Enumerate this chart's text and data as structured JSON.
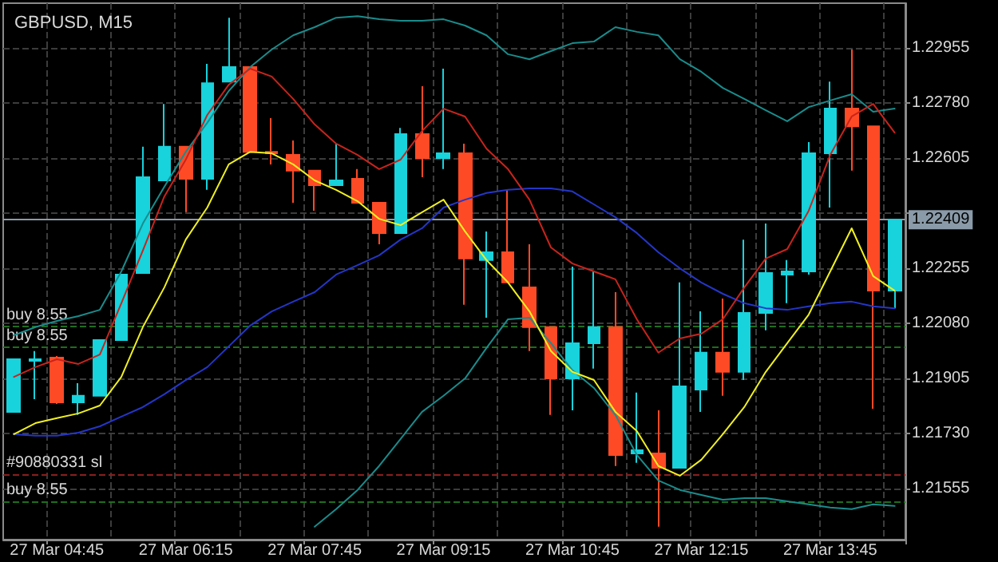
{
  "chart_data": {
    "type": "candlestick",
    "title": "GBPUSD, M15",
    "categories": [
      null,
      null,
      "27 Mar 04:45",
      null,
      null,
      null,
      null,
      null,
      "27 Mar 06:15",
      null,
      null,
      null,
      null,
      null,
      "27 Mar 07:45",
      null,
      null,
      null,
      null,
      null,
      "27 Mar 09:15",
      null,
      null,
      null,
      null,
      null,
      "27 Mar 10:45",
      null,
      null,
      null,
      null,
      null,
      "27 Mar 12:15",
      null,
      null,
      null,
      null,
      null,
      "27 Mar 13:45",
      null,
      null,
      null
    ],
    "ohlc": [
      [
        1.21799,
        1.21966,
        1.21799,
        1.21966
      ],
      [
        1.21961,
        1.21992,
        1.21839,
        1.21966
      ],
      [
        1.21971,
        1.21976,
        1.21824,
        1.21829
      ],
      [
        1.21829,
        1.2189,
        1.21789,
        1.2185
      ],
      [
        1.2185,
        1.22027,
        1.2185,
        1.22027
      ],
      [
        1.22027,
        1.22235,
        1.22027,
        1.22235
      ],
      [
        1.2224,
        1.22641,
        1.2224,
        1.22544
      ],
      [
        1.22534,
        1.22777,
        1.22534,
        1.22641
      ],
      [
        1.22641,
        1.22641,
        1.22433,
        1.22539
      ],
      [
        1.22539,
        1.22904,
        1.22504,
        1.22843
      ],
      [
        1.22848,
        1.23051,
        1.22848,
        1.22894
      ],
      [
        1.22894,
        1.22894,
        1.22625,
        1.22625
      ],
      [
        1.22625,
        1.22732,
        1.22585,
        1.2262
      ],
      [
        1.22615,
        1.22661,
        1.22463,
        1.22565
      ],
      [
        1.22565,
        1.22565,
        1.22438,
        1.22519
      ],
      [
        1.22519,
        1.22651,
        1.22519,
        1.22534
      ],
      [
        1.22539,
        1.2257,
        1.22463,
        1.22463
      ],
      [
        1.22463,
        1.22463,
        1.22331,
        1.22367
      ],
      [
        1.22367,
        1.22701,
        1.22367,
        1.22681
      ],
      [
        1.22681,
        1.22833,
        1.22544,
        1.22605
      ],
      [
        1.22605,
        1.22889,
        1.2257,
        1.2262
      ],
      [
        1.2262,
        1.22651,
        1.22139,
        1.22286
      ],
      [
        1.22281,
        1.22372,
        1.22098,
        1.22306
      ],
      [
        1.22306,
        1.22504,
        1.2221,
        1.2221
      ],
      [
        1.22194,
        1.22331,
        1.21992,
        1.22068
      ],
      [
        1.22068,
        1.22068,
        1.21789,
        1.21905
      ],
      [
        1.21905,
        1.2226,
        1.21804,
        1.22017
      ],
      [
        1.22017,
        1.22245,
        1.21936,
        1.22068
      ],
      [
        1.22068,
        1.22179,
        1.21627,
        1.21662
      ],
      [
        1.21667,
        1.2186,
        1.21637,
        1.21677
      ],
      [
        1.21667,
        1.21804,
        1.21434,
        1.21621
      ],
      [
        1.21621,
        1.2221,
        1.21621,
        1.2188
      ],
      [
        1.2187,
        1.22118,
        1.21799,
        1.21987
      ],
      [
        1.21987,
        1.22159,
        1.2185,
        1.21926
      ],
      [
        1.21926,
        1.22346,
        1.219,
        1.22113
      ],
      [
        1.22113,
        1.22397,
        1.22058,
        1.2224
      ],
      [
        1.22235,
        1.22281,
        1.22144,
        1.22245
      ],
      [
        1.22245,
        1.22656,
        1.22235,
        1.2262
      ],
      [
        1.2262,
        1.22848,
        1.22448,
        1.22762
      ],
      [
        1.22762,
        1.2295,
        1.22565,
        1.22706
      ],
      [
        1.22706,
        1.22706,
        1.21809,
        1.22184
      ],
      [
        1.22184,
        1.22409,
        1.22128,
        1.22409
      ]
    ],
    "colors": [
      "#18d2dc",
      "#18d2dc",
      "#ff4a26",
      "#18d2dc",
      "#18d2dc",
      "#18d2dc",
      "#18d2dc",
      "#18d2dc",
      "#ff4a26",
      "#18d2dc",
      "#18d2dc",
      "#ff4a26",
      "#ff4a26",
      "#ff4a26",
      "#ff4a26",
      "#18d2dc",
      "#ff4a26",
      "#ff4a26",
      "#18d2dc",
      "#ff4a26",
      "#18d2dc",
      "#ff4a26",
      "#18d2dc",
      "#ff4a26",
      "#ff4a26",
      "#ff4a26",
      "#18d2dc",
      "#18d2dc",
      "#ff4a26",
      "#18d2dc",
      "#ff4a26",
      "#18d2dc",
      "#18d2dc",
      "#ff4a26",
      "#18d2dc",
      "#18d2dc",
      "#18d2dc",
      "#18d2dc",
      "#18d2dc",
      "#ff4a26",
      "#ff4a26",
      "#18d2dc"
    ],
    "series": [
      {
        "type": "line",
        "color": "#1a8c8c",
        "values": [
          1.22042,
          1.22068,
          1.22088,
          1.22103,
          1.22123,
          1.22245,
          1.22397,
          1.22514,
          1.22625,
          1.22717,
          1.22818,
          1.22894,
          1.2295,
          1.22995,
          1.23021,
          1.23051,
          1.23056,
          1.23046,
          1.23041,
          1.23041,
          1.23046,
          1.23026,
          1.22995,
          1.22935,
          1.22919,
          1.22945,
          1.2297,
          1.22975,
          1.23021,
          1.23006,
          1.22995,
          1.22919,
          1.22879,
          1.22828,
          1.22793,
          1.22757,
          1.22722,
          1.22767,
          1.22788,
          1.22808,
          1.22752,
          1.22762
        ]
      },
      {
        "type": "line",
        "color": "#1a8c8c",
        "values": [
          null,
          null,
          null,
          null,
          null,
          null,
          null,
          null,
          null,
          null,
          null,
          null,
          null,
          null,
          1.21434,
          1.2149,
          1.21551,
          1.21627,
          1.21713,
          1.21799,
          1.2185,
          1.21905,
          1.22002,
          1.22093,
          1.22098,
          1.22017,
          1.21931,
          1.21875,
          1.21789,
          1.21662,
          1.21581,
          1.21551,
          1.21535,
          1.2152,
          1.21525,
          1.21525,
          1.21515,
          1.21505,
          1.21495,
          1.2149,
          1.21505,
          1.215
        ]
      },
      {
        "type": "line",
        "color": "#2436c8",
        "values": [
          1.21728,
          1.21723,
          1.21723,
          1.21733,
          1.21753,
          1.21784,
          1.21814,
          1.21855,
          1.219,
          1.21941,
          1.22007,
          1.22073,
          1.22118,
          1.22149,
          1.22179,
          1.22235,
          1.22265,
          1.22296,
          1.22346,
          1.22382,
          1.22448,
          1.22473,
          1.22494,
          1.22504,
          1.22509,
          1.22509,
          1.22499,
          1.22458,
          1.22417,
          1.22367,
          1.22306,
          1.22255,
          1.2221,
          1.22174,
          1.22144,
          1.22128,
          1.22123,
          1.22134,
          1.22144,
          1.22149,
          1.22134,
          1.22128
        ]
      },
      {
        "type": "line",
        "color": "#c8241c",
        "values": [
          1.2191,
          1.21941,
          1.21966,
          1.21951,
          1.21981,
          1.22144,
          1.22311,
          1.22483,
          1.226,
          1.22742,
          1.22838,
          1.22889,
          1.22864,
          1.22793,
          1.22712,
          1.22651,
          1.22615,
          1.2257,
          1.226,
          1.22691,
          1.22762,
          1.22737,
          1.22635,
          1.2257,
          1.22473,
          1.22321,
          1.2227,
          1.22245,
          1.2222,
          1.22093,
          1.21987,
          1.22032,
          1.22047,
          1.22093,
          1.22194,
          1.22286,
          1.22316,
          1.22438,
          1.22615,
          1.22737,
          1.22777,
          1.22686
        ]
      },
      {
        "type": "line",
        "color": "#f0f020",
        "values": [
          1.21728,
          1.21763,
          1.21779,
          1.21794,
          1.21819,
          1.2191,
          1.22068,
          1.22194,
          1.22346,
          1.22448,
          1.22585,
          1.22625,
          1.2262,
          1.22585,
          1.22534,
          1.22504,
          1.22468,
          1.22412,
          1.22392,
          1.22433,
          1.22473,
          1.22372,
          1.22281,
          1.2221,
          1.22118,
          1.21992,
          1.21926,
          1.219,
          1.21799,
          1.21738,
          1.21627,
          1.21596,
          1.21647,
          1.21728,
          1.21814,
          1.21926,
          1.22017,
          1.22108,
          1.22245,
          1.22382,
          1.2223,
          1.22184
        ]
      }
    ],
    "ylim": [
      1.21393,
      1.23097
    ],
    "yticks": [
      1.21555,
      {
        "value": 1.2173,
        "label": "1.21730"
      },
      1.21905,
      {
        "value": 1.2208,
        "label": "1.22080"
      },
      1.22255,
      {
        "value": 1.2243,
        "label": null
      },
      1.22605,
      {
        "value": 1.2278,
        "label": "1.22780"
      },
      1.22955
    ],
    "ref_lines": [
      {
        "axis": "y",
        "value": 1.2207,
        "label": "buy 8.55",
        "color": "#1e6e1e",
        "line_style": "dashed"
      },
      {
        "axis": "y",
        "value": 1.22004,
        "label": "buy 8.55",
        "color": "#1e6e1e",
        "line_style": "dashed"
      },
      {
        "axis": "y",
        "value": 1.21601,
        "label": "#90880331 sl",
        "color": "#8a1e1e",
        "line_style": "dashed"
      },
      {
        "axis": "y",
        "value": 1.21514,
        "label": "buy 8.55",
        "color": "#1e6e1e",
        "line_style": "dashed"
      },
      {
        "axis": "y",
        "value": 1.22409,
        "label": "1.22409",
        "color": "#8a9aa8",
        "line_style": "solid"
      }
    ],
    "grid": true,
    "marker": "none",
    "line_style": "solid"
  }
}
